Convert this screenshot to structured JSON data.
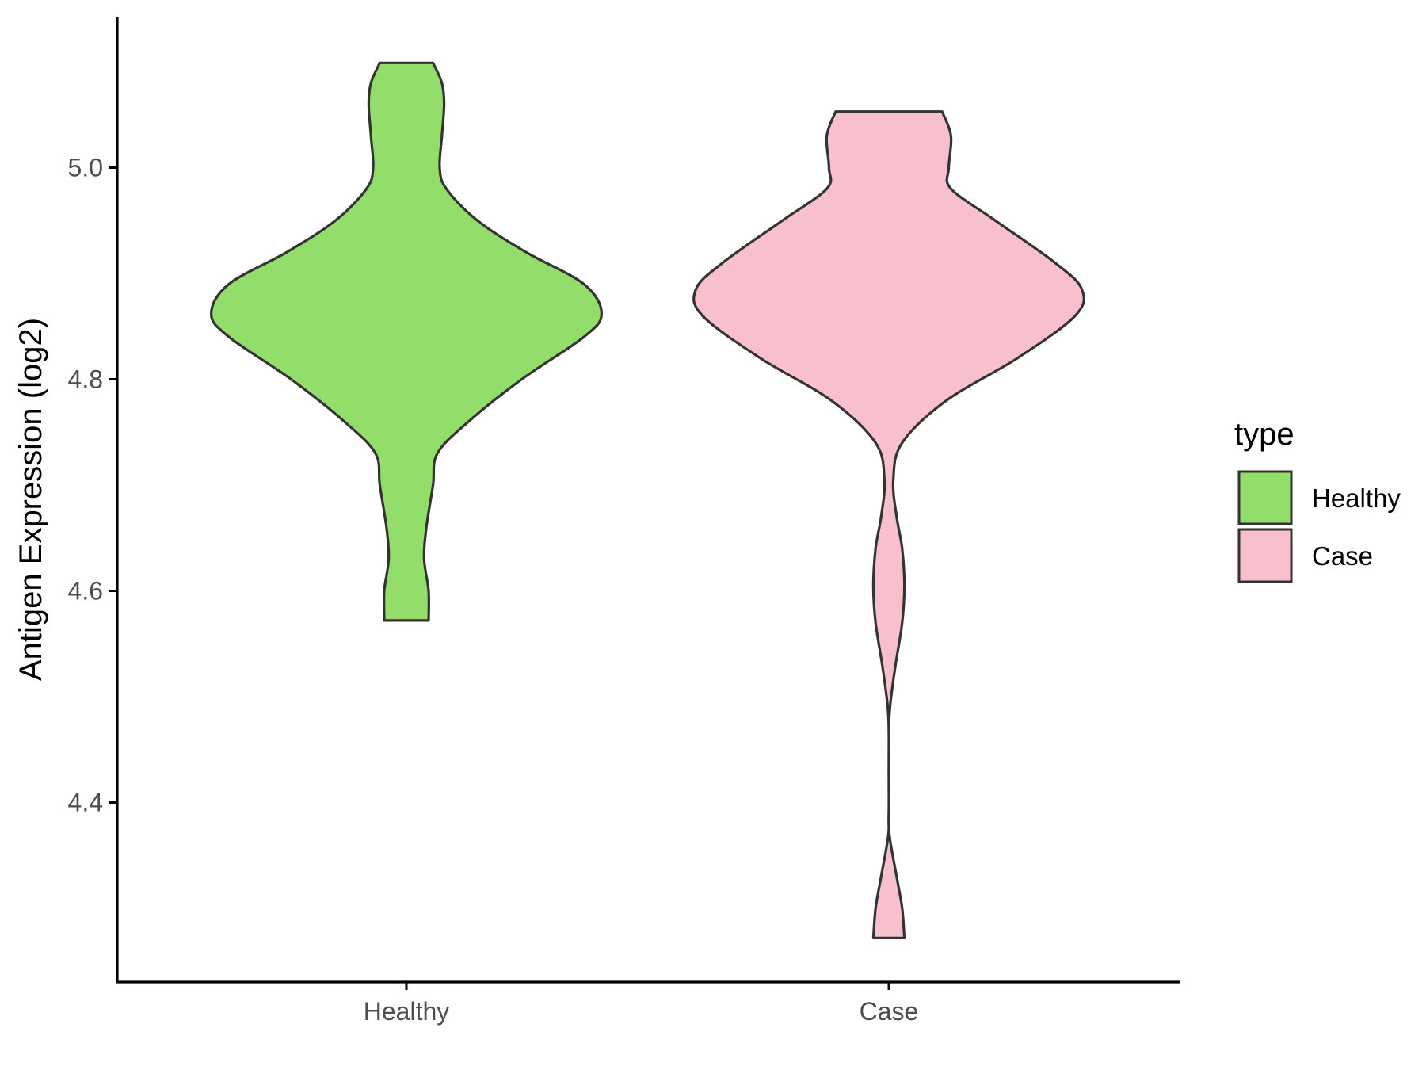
{
  "chart_data": {
    "type": "violin",
    "title": "",
    "xlabel": "",
    "ylabel": "Antigen Expression (log2)",
    "categories": [
      "Healthy",
      "Case"
    ],
    "y_ticks": [
      "4.4",
      "4.6",
      "4.8",
      "5.0"
    ],
    "y_tick_values": [
      4.4,
      4.6,
      4.8,
      5.0
    ],
    "ylim": [
      4.22,
      5.14
    ],
    "grid": false,
    "legend": {
      "title": "type",
      "position": "right",
      "entries": [
        {
          "label": "Healthy",
          "color": "#93dd6a"
        },
        {
          "label": "Case",
          "color": "#f8c0cc"
        }
      ]
    },
    "series": [
      {
        "name": "Healthy",
        "color": "#93dd6a",
        "y_min": 4.572,
        "y_max": 5.099,
        "density": [
          [
            4.572,
            0.1
          ],
          [
            4.6,
            0.1
          ],
          [
            4.63,
            0.08
          ],
          [
            4.66,
            0.09
          ],
          [
            4.7,
            0.12
          ],
          [
            4.73,
            0.14
          ],
          [
            4.76,
            0.28
          ],
          [
            4.8,
            0.52
          ],
          [
            4.84,
            0.8
          ],
          [
            4.862,
            0.88
          ],
          [
            4.89,
            0.8
          ],
          [
            4.92,
            0.54
          ],
          [
            4.95,
            0.32
          ],
          [
            4.98,
            0.18
          ],
          [
            5.0,
            0.15
          ],
          [
            5.03,
            0.16
          ],
          [
            5.06,
            0.17
          ],
          [
            5.08,
            0.16
          ],
          [
            5.099,
            0.12
          ]
        ]
      },
      {
        "name": "Case",
        "color": "#f8c0cc",
        "y_min": 4.272,
        "y_max": 5.053,
        "density": [
          [
            4.272,
            0.07
          ],
          [
            4.3,
            0.06
          ],
          [
            4.33,
            0.035
          ],
          [
            4.37,
            0.002
          ],
          [
            4.4,
            0.0
          ],
          [
            4.46,
            0.0
          ],
          [
            4.49,
            0.005
          ],
          [
            4.53,
            0.03
          ],
          [
            4.57,
            0.06
          ],
          [
            4.605,
            0.07
          ],
          [
            4.64,
            0.06
          ],
          [
            4.67,
            0.035
          ],
          [
            4.705,
            0.02
          ],
          [
            4.74,
            0.06
          ],
          [
            4.78,
            0.26
          ],
          [
            4.82,
            0.58
          ],
          [
            4.86,
            0.84
          ],
          [
            4.885,
            0.87
          ],
          [
            4.91,
            0.75
          ],
          [
            4.95,
            0.48
          ],
          [
            4.98,
            0.28
          ],
          [
            5.0,
            0.27
          ],
          [
            5.03,
            0.28
          ],
          [
            5.053,
            0.24
          ]
        ]
      }
    ]
  }
}
